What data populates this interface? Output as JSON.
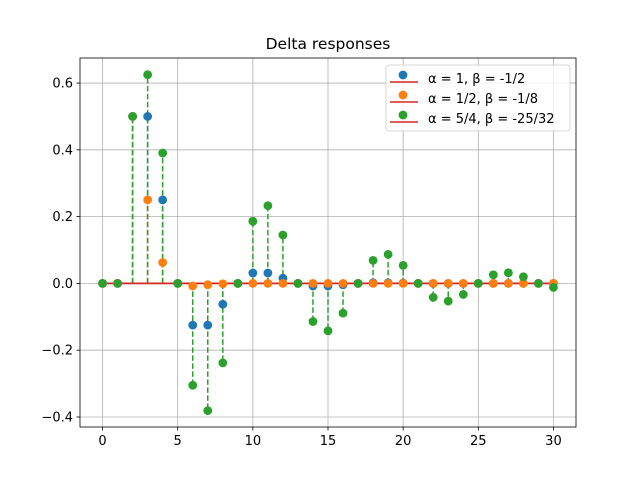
{
  "chart_data": {
    "type": "stem",
    "title": "Delta responses",
    "xlabel": "",
    "ylabel": "",
    "xlim": [
      -1.5,
      31.5
    ],
    "ylim": [
      -0.43,
      0.675
    ],
    "xticks": [
      0,
      5,
      10,
      15,
      20,
      25,
      30
    ],
    "xtick_labels": [
      "0",
      "5",
      "10",
      "15",
      "20",
      "25",
      "30"
    ],
    "yticks": [
      -0.4,
      -0.2,
      0.0,
      0.2,
      0.4,
      0.6
    ],
    "ytick_labels": [
      "−0.4",
      "−0.2",
      "0.0",
      "0.2",
      "0.4",
      "0.6"
    ],
    "grid": true,
    "legend_position": "top-right",
    "x": [
      0,
      1,
      2,
      3,
      4,
      5,
      6,
      7,
      8,
      9,
      10,
      11,
      12,
      13,
      14,
      15,
      16,
      17,
      18,
      19,
      20,
      21,
      22,
      23,
      24,
      25,
      26,
      27,
      28,
      29,
      30
    ],
    "series": [
      {
        "name": "α = 1, β = -1/2",
        "color": "#1f77b4",
        "values": [
          0,
          0,
          0.5,
          0.5,
          0.25,
          0,
          -0.125,
          -0.125,
          -0.0625,
          0,
          0.03125,
          0.03125,
          0.015625,
          0,
          -0.0078,
          -0.0078,
          -0.0039,
          0,
          0.002,
          0.002,
          0.001,
          0,
          -0.0005,
          -0.0005,
          -0.0002,
          0,
          0.0001,
          0.0001,
          0.0001,
          0,
          0
        ]
      },
      {
        "name": "α = 1/2, β = -1/8",
        "color": "#ff7f0e",
        "values": [
          0,
          0,
          0.5,
          0.25,
          0.0625,
          0,
          -0.0078,
          -0.0039,
          -0.001,
          0,
          0.0001,
          0,
          0,
          0,
          0,
          0,
          0,
          0,
          0,
          0,
          0,
          0,
          0,
          0,
          0,
          0,
          0,
          0,
          0,
          0,
          0
        ]
      },
      {
        "name": "α = 5/4, β = -25/32",
        "color": "#2ca02c",
        "values": [
          0,
          0,
          0.5,
          0.625,
          0.390625,
          0,
          -0.305,
          -0.381,
          -0.238,
          0,
          0.186,
          0.233,
          0.145,
          0,
          -0.114,
          -0.142,
          -0.089,
          0,
          0.069,
          0.087,
          0.054,
          0,
          -0.042,
          -0.053,
          -0.033,
          0,
          0.026,
          0.032,
          0.02,
          0,
          -0.012
        ]
      }
    ],
    "baseline_color": "#d62728"
  }
}
